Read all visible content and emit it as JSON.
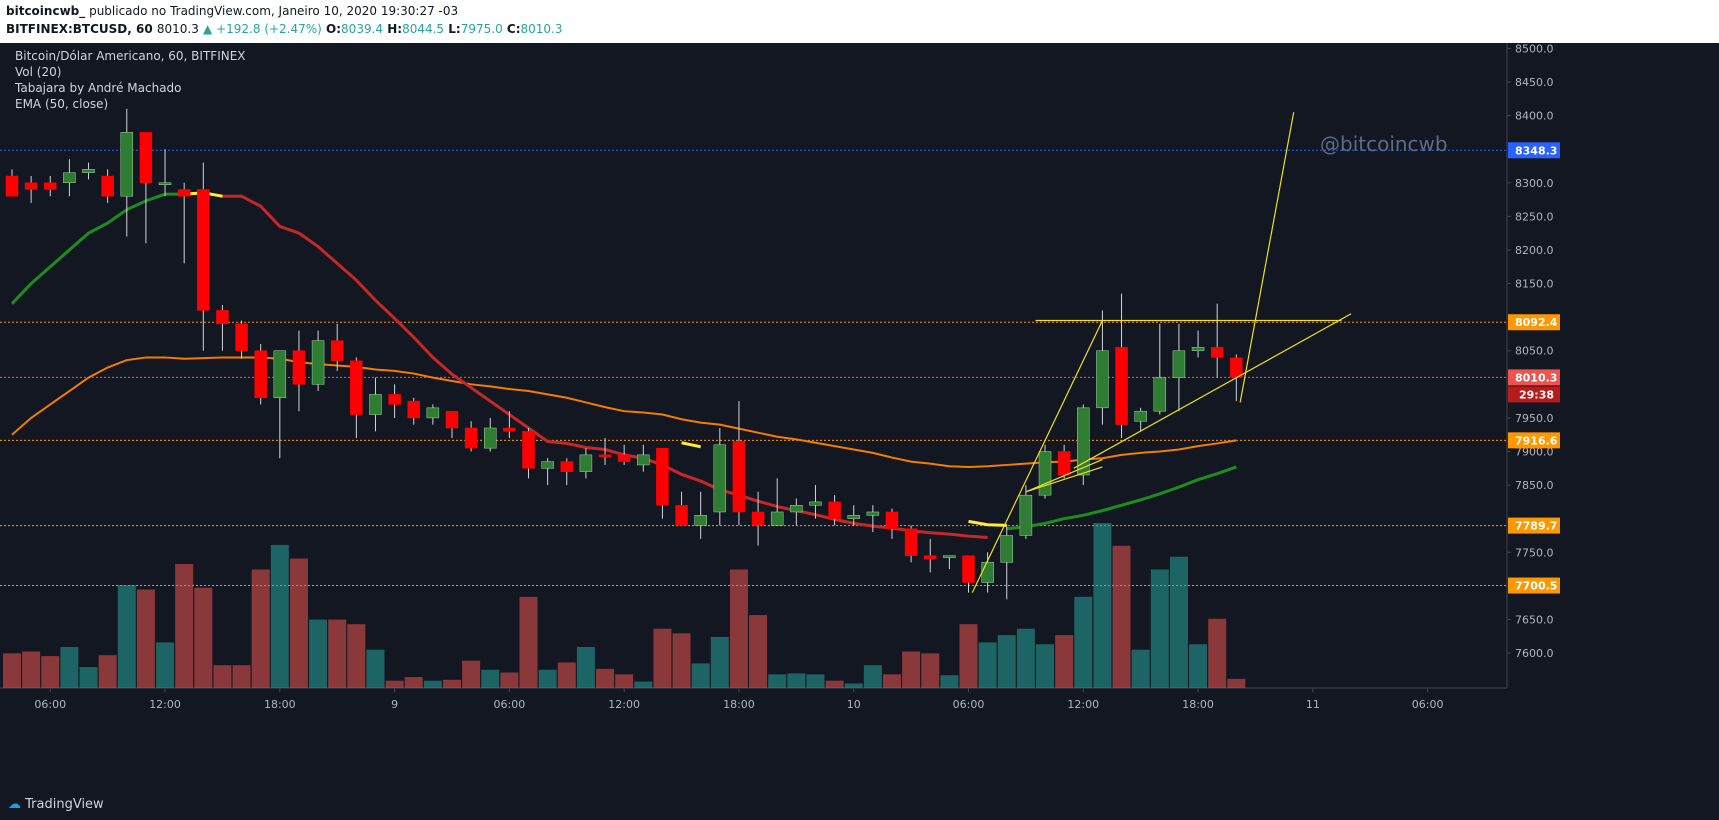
{
  "header": {
    "user": "bitcoincwb_",
    "published": "publicado no TradingView.com, Janeiro 10, 2020 19:30:27 -03",
    "symbol": "BITFINEX:BTCUSD, 60",
    "last": "8010.3",
    "change": "▲ +192.8 (+2.47%)",
    "o_label": "O:",
    "o": "8039.4",
    "h_label": "H:",
    "h": "8044.5",
    "l_label": "L:",
    "l": "7975.0",
    "c_label": "C:",
    "c": "8010.3"
  },
  "legend": {
    "title": "Bitcoin/Dólar Americano, 60, BITFINEX",
    "vol": "Vol (20)",
    "indicator": "Tabajara by André Machado",
    "ema": "EMA (50, close)"
  },
  "watermark": "@bitcoincwb",
  "footer": {
    "brand": "TradingView"
  },
  "colors": {
    "background": "#131722",
    "up": "#2e7d32",
    "down": "#ff0000",
    "vol_up": "#26a69a",
    "vol_down": "#ef5350",
    "ema_red": "#c62828",
    "ema_orange": "#f57c00",
    "ema_green": "#1b8e1b",
    "trendline": "#f0e020",
    "level_orange": "#ff9800",
    "level_blue": "#2962ff"
  },
  "chart_data": {
    "type": "candlestick",
    "interval": "60",
    "x_tick_labels": [
      "06:00",
      "12:00",
      "18:00",
      "9",
      "06:00",
      "12:00",
      "18:00",
      "10",
      "06:00",
      "12:00",
      "18:00",
      "11",
      "06:00"
    ],
    "y_tick_labels": [
      "8500.0",
      "8450.0",
      "8400.0",
      "8300.0",
      "8250.0",
      "8200.0",
      "8150.0",
      "8050.0",
      "7950.0",
      "7900.0",
      "7850.0",
      "7750.0",
      "7650.0",
      "7600.0"
    ],
    "ylim": [
      7548,
      8508
    ],
    "price_labels": [
      {
        "value": 8348.3,
        "text": "8348.3",
        "color": "#2962ff"
      },
      {
        "value": 8092.4,
        "text": "8092.4",
        "color": "#ff9800"
      },
      {
        "value": 8010.3,
        "text": "8010.3",
        "color": "#ef5350"
      },
      {
        "value": 7916.6,
        "text": "7916.6",
        "color": "#ff9800"
      },
      {
        "value": 7789.7,
        "text": "7789.7",
        "color": "#ff9800"
      },
      {
        "value": 7700.5,
        "text": "7700.5",
        "color": "#ff9800"
      }
    ],
    "countdown": "29:38",
    "candles": [
      {
        "o": 8310,
        "h": 8320,
        "l": 8280,
        "c": 8280,
        "v": 0.38
      },
      {
        "o": 8300,
        "h": 8310,
        "l": 8270,
        "c": 8290,
        "v": 0.4
      },
      {
        "o": 8300,
        "h": 8310,
        "l": 8280,
        "c": 8290,
        "v": 0.35
      },
      {
        "o": 8300,
        "h": 8335,
        "l": 8280,
        "c": 8315,
        "v": 0.45
      },
      {
        "o": 8315,
        "h": 8330,
        "l": 8305,
        "c": 8320,
        "v": 0.23
      },
      {
        "o": 8310,
        "h": 8320,
        "l": 8270,
        "c": 8280,
        "v": 0.36
      },
      {
        "o": 8280,
        "h": 8410,
        "l": 8220,
        "c": 8375,
        "v": 1.13
      },
      {
        "o": 8375,
        "h": 8375,
        "l": 8210,
        "c": 8300,
        "v": 1.08
      },
      {
        "o": 8300,
        "h": 8350,
        "l": 8280,
        "c": 8300,
        "v": 0.5
      },
      {
        "o": 8290,
        "h": 8300,
        "l": 8180,
        "c": 8280,
        "v": 1.36
      },
      {
        "o": 8290,
        "h": 8330,
        "l": 8050,
        "c": 8110,
        "v": 1.1
      },
      {
        "o": 8110,
        "h": 8118,
        "l": 8050,
        "c": 8090,
        "v": 0.25
      },
      {
        "o": 8090,
        "h": 8095,
        "l": 8038,
        "c": 8050,
        "v": 0.25
      },
      {
        "o": 8050,
        "h": 8060,
        "l": 7970,
        "c": 7980,
        "v": 1.3
      },
      {
        "o": 7980,
        "h": 8050,
        "l": 7890,
        "c": 8050,
        "v": 1.57
      },
      {
        "o": 8050,
        "h": 8080,
        "l": 7960,
        "c": 8000,
        "v": 1.42
      },
      {
        "o": 8000,
        "h": 8080,
        "l": 7990,
        "c": 8065,
        "v": 0.75
      },
      {
        "o": 8065,
        "h": 8090,
        "l": 8020,
        "c": 8035,
        "v": 0.75
      },
      {
        "o": 8035,
        "h": 8040,
        "l": 7920,
        "c": 7955,
        "v": 0.7
      },
      {
        "o": 7955,
        "h": 8010,
        "l": 7930,
        "c": 7985,
        "v": 0.42
      },
      {
        "o": 7985,
        "h": 8000,
        "l": 7950,
        "c": 7970,
        "v": 0.08
      },
      {
        "o": 7975,
        "h": 7980,
        "l": 7940,
        "c": 7950,
        "v": 0.12
      },
      {
        "o": 7950,
        "h": 7970,
        "l": 7940,
        "c": 7965,
        "v": 0.08
      },
      {
        "o": 7960,
        "h": 7960,
        "l": 7920,
        "c": 7935,
        "v": 0.09
      },
      {
        "o": 7935,
        "h": 7945,
        "l": 7900,
        "c": 7905,
        "v": 0.3
      },
      {
        "o": 7905,
        "h": 7950,
        "l": 7900,
        "c": 7935,
        "v": 0.2
      },
      {
        "o": 7935,
        "h": 7960,
        "l": 7920,
        "c": 7930,
        "v": 0.17
      },
      {
        "o": 7930,
        "h": 7935,
        "l": 7860,
        "c": 7875,
        "v": 1.0
      },
      {
        "o": 7875,
        "h": 7890,
        "l": 7850,
        "c": 7885,
        "v": 0.2
      },
      {
        "o": 7885,
        "h": 7890,
        "l": 7850,
        "c": 7870,
        "v": 0.28
      },
      {
        "o": 7870,
        "h": 7905,
        "l": 7860,
        "c": 7895,
        "v": 0.45
      },
      {
        "o": 7895,
        "h": 7920,
        "l": 7880,
        "c": 7893,
        "v": 0.21
      },
      {
        "o": 7895,
        "h": 7910,
        "l": 7880,
        "c": 7885,
        "v": 0.15
      },
      {
        "o": 7880,
        "h": 7910,
        "l": 7870,
        "c": 7895,
        "v": 0.07
      },
      {
        "o": 7905,
        "h": 7905,
        "l": 7800,
        "c": 7820,
        "v": 0.65
      },
      {
        "o": 7820,
        "h": 7840,
        "l": 7790,
        "c": 7790,
        "v": 0.6
      },
      {
        "o": 7790,
        "h": 7840,
        "l": 7770,
        "c": 7805,
        "v": 0.27
      },
      {
        "o": 7810,
        "h": 7935,
        "l": 7790,
        "c": 7910,
        "v": 0.56
      },
      {
        "o": 7915,
        "h": 7975,
        "l": 7790,
        "c": 7810,
        "v": 1.3
      },
      {
        "o": 7810,
        "h": 7840,
        "l": 7760,
        "c": 7790,
        "v": 0.8
      },
      {
        "o": 7790,
        "h": 7860,
        "l": 7790,
        "c": 7810,
        "v": 0.15
      },
      {
        "o": 7810,
        "h": 7830,
        "l": 7790,
        "c": 7820,
        "v": 0.16
      },
      {
        "o": 7820,
        "h": 7850,
        "l": 7800,
        "c": 7825,
        "v": 0.15
      },
      {
        "o": 7825,
        "h": 7835,
        "l": 7790,
        "c": 7800,
        "v": 0.08
      },
      {
        "o": 7800,
        "h": 7820,
        "l": 7790,
        "c": 7805,
        "v": 0.05
      },
      {
        "o": 7805,
        "h": 7820,
        "l": 7780,
        "c": 7810,
        "v": 0.25
      },
      {
        "o": 7810,
        "h": 7815,
        "l": 7770,
        "c": 7785,
        "v": 0.15
      },
      {
        "o": 7785,
        "h": 7790,
        "l": 7735,
        "c": 7745,
        "v": 0.4
      },
      {
        "o": 7745,
        "h": 7770,
        "l": 7720,
        "c": 7740,
        "v": 0.38
      },
      {
        "o": 7745,
        "h": 7745,
        "l": 7725,
        "c": 7745,
        "v": 0.14
      },
      {
        "o": 7745,
        "h": 7745,
        "l": 7690,
        "c": 7705,
        "v": 0.7
      },
      {
        "o": 7705,
        "h": 7750,
        "l": 7690,
        "c": 7735,
        "v": 0.5
      },
      {
        "o": 7735,
        "h": 7790,
        "l": 7680,
        "c": 7775,
        "v": 0.58
      },
      {
        "o": 7775,
        "h": 7850,
        "l": 7770,
        "c": 7835,
        "v": 0.65
      },
      {
        "o": 7835,
        "h": 7910,
        "l": 7830,
        "c": 7900,
        "v": 0.48
      },
      {
        "o": 7900,
        "h": 7910,
        "l": 7860,
        "c": 7865,
        "v": 0.58
      },
      {
        "o": 7865,
        "h": 7970,
        "l": 7850,
        "c": 7965,
        "v": 1.0
      },
      {
        "o": 7965,
        "h": 8110,
        "l": 7940,
        "c": 8050,
        "v": 1.81
      },
      {
        "o": 8055,
        "h": 8135,
        "l": 7920,
        "c": 7940,
        "v": 1.56
      },
      {
        "o": 7945,
        "h": 7965,
        "l": 7930,
        "c": 7960,
        "v": 0.42
      },
      {
        "o": 7960,
        "h": 8090,
        "l": 7955,
        "c": 8010,
        "v": 1.3
      },
      {
        "o": 8010,
        "h": 8090,
        "l": 7960,
        "c": 8050,
        "v": 1.44
      },
      {
        "o": 8050,
        "h": 8080,
        "l": 8040,
        "c": 8055,
        "v": 0.48
      },
      {
        "o": 8055,
        "h": 8120,
        "l": 8010,
        "c": 8040,
        "v": 0.76
      },
      {
        "o": 8039.4,
        "h": 8044.5,
        "l": 7975,
        "c": 8010.3,
        "v": 0.1
      }
    ],
    "ema_red": [
      [
        9,
        8283
      ],
      [
        10,
        8285
      ],
      [
        11,
        8280
      ],
      [
        12,
        8280
      ],
      [
        13,
        8265
      ],
      [
        14,
        8235
      ],
      [
        15,
        8225
      ],
      [
        16,
        8205
      ],
      [
        17,
        8180
      ],
      [
        18,
        8155
      ],
      [
        19,
        8125
      ],
      [
        20,
        8098
      ],
      [
        21,
        8070
      ],
      [
        22,
        8040
      ],
      [
        23,
        8015
      ],
      [
        24,
        7995
      ],
      [
        25,
        7975
      ],
      [
        26,
        7955
      ],
      [
        27,
        7935
      ],
      [
        28,
        7915
      ],
      [
        29,
        7912
      ],
      [
        30,
        7906
      ],
      [
        31,
        7903
      ],
      [
        32,
        7895
      ],
      [
        33,
        7890
      ],
      [
        34,
        7880
      ],
      [
        35,
        7866
      ],
      [
        36,
        7856
      ],
      [
        37,
        7843
      ],
      [
        38,
        7835
      ],
      [
        39,
        7826
      ],
      [
        40,
        7818
      ],
      [
        41,
        7812
      ],
      [
        42,
        7806
      ],
      [
        43,
        7799
      ],
      [
        44,
        7793
      ],
      [
        45,
        7789
      ],
      [
        46,
        7786
      ],
      [
        47,
        7782
      ],
      [
        48,
        7779
      ],
      [
        49,
        7777
      ],
      [
        50,
        7774
      ],
      [
        51,
        7772
      ]
    ],
    "ema_orange": [
      [
        0,
        7925
      ],
      [
        1,
        7950
      ],
      [
        2,
        7970
      ],
      [
        3,
        7990
      ],
      [
        4,
        8010
      ],
      [
        5,
        8025
      ],
      [
        6,
        8036
      ],
      [
        7,
        8040
      ],
      [
        8,
        8040
      ],
      [
        9,
        8038
      ],
      [
        10,
        8039
      ],
      [
        11,
        8040
      ],
      [
        12,
        8040
      ],
      [
        13,
        8040
      ],
      [
        14,
        8038
      ],
      [
        15,
        8033
      ],
      [
        16,
        8030
      ],
      [
        17,
        8028
      ],
      [
        18,
        8026
      ],
      [
        19,
        8022
      ],
      [
        20,
        8020
      ],
      [
        21,
        8016
      ],
      [
        22,
        8010
      ],
      [
        23,
        8005
      ],
      [
        24,
        8000
      ],
      [
        25,
        7997
      ],
      [
        26,
        7993
      ],
      [
        27,
        7990
      ],
      [
        28,
        7985
      ],
      [
        29,
        7980
      ],
      [
        30,
        7973
      ],
      [
        31,
        7966
      ],
      [
        32,
        7960
      ],
      [
        33,
        7958
      ],
      [
        34,
        7955
      ],
      [
        35,
        7948
      ],
      [
        36,
        7943
      ],
      [
        37,
        7940
      ],
      [
        38,
        7934
      ],
      [
        39,
        7928
      ],
      [
        40,
        7922
      ],
      [
        41,
        7918
      ],
      [
        42,
        7913
      ],
      [
        43,
        7908
      ],
      [
        44,
        7903
      ],
      [
        45,
        7898
      ],
      [
        46,
        7891
      ],
      [
        47,
        7885
      ],
      [
        48,
        7882
      ],
      [
        49,
        7878
      ],
      [
        50,
        7877
      ],
      [
        51,
        7878
      ],
      [
        52,
        7880
      ],
      [
        53,
        7882
      ],
      [
        54,
        7884
      ],
      [
        55,
        7885
      ],
      [
        56,
        7888
      ],
      [
        57,
        7890
      ],
      [
        58,
        7895
      ],
      [
        59,
        7898
      ],
      [
        60,
        7900
      ],
      [
        61,
        7903
      ],
      [
        62,
        7908
      ],
      [
        63,
        7912
      ],
      [
        64,
        7916.6
      ]
    ],
    "ema_green": [
      [
        0,
        8120
      ],
      [
        1,
        8150
      ],
      [
        2,
        8175
      ],
      [
        3,
        8200
      ],
      [
        4,
        8225
      ],
      [
        5,
        8240
      ],
      [
        6,
        8260
      ],
      [
        7,
        8273
      ],
      [
        8,
        8283
      ],
      [
        9,
        8283
      ],
      [
        52,
        7785
      ],
      [
        53,
        7788
      ],
      [
        54,
        7793
      ],
      [
        55,
        7800
      ],
      [
        56,
        7805
      ],
      [
        57,
        7812
      ],
      [
        58,
        7820
      ],
      [
        59,
        7828
      ],
      [
        60,
        7837
      ],
      [
        61,
        7847
      ],
      [
        62,
        7858
      ],
      [
        63,
        7867
      ],
      [
        64,
        7877
      ]
    ],
    "yellow_segments": [
      [
        [
          9,
          8283
        ],
        [
          10,
          8285
        ],
        [
          11,
          8280
        ]
      ],
      [
        [
          35,
          7913
        ],
        [
          36,
          7907
        ]
      ],
      [
        [
          50,
          7796
        ],
        [
          51,
          7791
        ],
        [
          52,
          7790
        ]
      ]
    ],
    "trendlines": [
      [
        [
          50.2,
          7690
        ],
        [
          57,
          8095
        ]
      ],
      [
        [
          53,
          7840
        ],
        [
          57,
          7888
        ]
      ],
      [
        [
          53,
          7840
        ],
        [
          57,
          7877
        ]
      ],
      [
        [
          55.5,
          7875
        ],
        [
          70,
          8105
        ]
      ],
      [
        [
          53.5,
          8095
        ],
        [
          69.5,
          8095
        ]
      ],
      [
        [
          64.2,
          7973
        ],
        [
          67,
          8405
        ]
      ]
    ]
  }
}
